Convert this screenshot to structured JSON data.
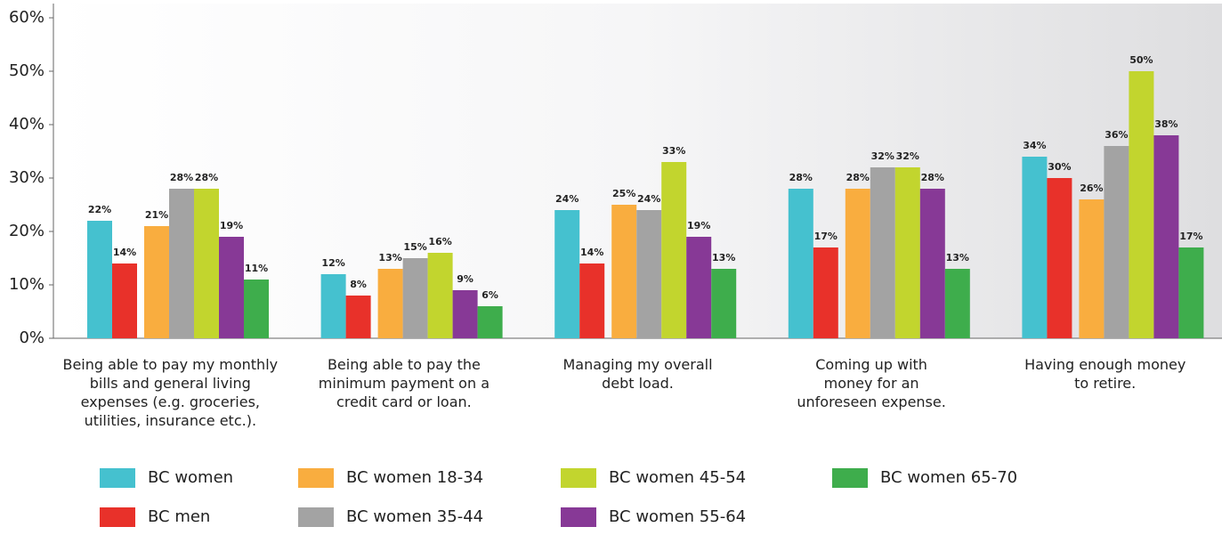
{
  "chart_data": {
    "type": "bar",
    "categories": [
      [
        "Being able to pay my monthly",
        "bills and general living",
        "expenses (e.g. groceries,",
        "utilities, insurance etc.)."
      ],
      [
        "Being able to pay the",
        "minimum payment on a",
        "credit card or loan."
      ],
      [
        "Managing my overall",
        "debt load."
      ],
      [
        "Coming up with",
        "money for an",
        "unforeseen expense."
      ],
      [
        "Having enough money",
        "to retire."
      ]
    ],
    "series": [
      {
        "name": "BC women",
        "color": "#45c1cf",
        "values": [
          22,
          12,
          24,
          28,
          34
        ],
        "value_labels": [
          "22%",
          "12%",
          "24%",
          "28%",
          "34%"
        ]
      },
      {
        "name": "BC men",
        "color": "#e8312a",
        "values": [
          14,
          8,
          14,
          17,
          30
        ],
        "value_labels": [
          "14%",
          "8%",
          "14%",
          "17%",
          "30%"
        ]
      },
      {
        "name": "BC women 18-34",
        "color": "#f9ad3f",
        "values": [
          21,
          13,
          25,
          28,
          26
        ],
        "value_labels": [
          "21%",
          "13%",
          "25%",
          "28%",
          "26%"
        ]
      },
      {
        "name": "BC women 35-44",
        "color": "#a3a3a3",
        "values": [
          28,
          15,
          24,
          32,
          36
        ],
        "value_labels": [
          "28%",
          "15%",
          "24%",
          "32%",
          "36%"
        ]
      },
      {
        "name": "BC women 45-54",
        "color": "#c2d52e",
        "values": [
          28,
          16,
          33,
          32,
          50
        ],
        "value_labels": [
          "28%",
          "16%",
          "33%",
          "32%",
          "50%"
        ]
      },
      {
        "name": "BC women 55-64",
        "color": "#873996",
        "values": [
          19,
          9,
          19,
          28,
          38
        ],
        "value_labels": [
          "19%",
          "9%",
          "19%",
          "28%",
          "38%"
        ]
      },
      {
        "name": "BC women 65-70",
        "color": "#3ead4c",
        "values": [
          11,
          6,
          13,
          13,
          17
        ],
        "value_labels": [
          "11%",
          "6%",
          "13%",
          "13%",
          "17%"
        ]
      }
    ],
    "ylim": [
      0,
      60
    ],
    "yticks": [
      {
        "value": 0,
        "label": "0%"
      },
      {
        "value": 10,
        "label": "10%"
      },
      {
        "value": 20,
        "label": "20%"
      },
      {
        "value": 30,
        "label": "30%"
      },
      {
        "value": 40,
        "label": "40%"
      },
      {
        "value": 50,
        "label": "50%"
      },
      {
        "value": 60,
        "label": "60%"
      }
    ],
    "grid": false
  }
}
